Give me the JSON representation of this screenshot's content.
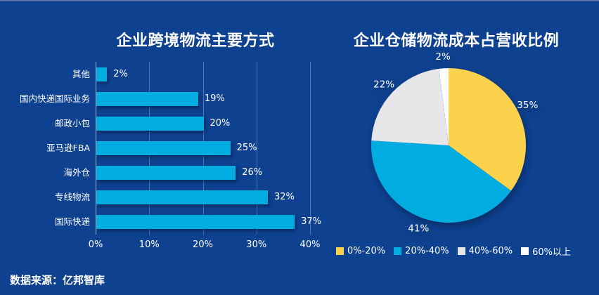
{
  "source": "数据来源：亿邦智库",
  "colors": {
    "background": "#0E418F",
    "top_strip": "#6F83A6",
    "text": "#FFFFFF",
    "gridline": "rgba(168,192,226,0.42)"
  },
  "chart_data": [
    {
      "type": "bar",
      "orientation": "horizontal",
      "title": "企业跨境物流主要方式",
      "categories": [
        "其他",
        "国内快递国际业务",
        "邮政小包",
        "亚马逊FBA",
        "海外仓",
        "专线物流",
        "国际快递"
      ],
      "values": [
        2,
        19,
        20,
        25,
        26,
        32,
        37
      ],
      "value_labels": [
        "2%",
        "19%",
        "20%",
        "25%",
        "26%",
        "32%",
        "37%"
      ],
      "xlim": [
        0,
        40
      ],
      "x_ticks": [
        {
          "value": 0,
          "label": "0%"
        },
        {
          "value": 10,
          "label": "10%"
        },
        {
          "value": 20,
          "label": "20%"
        },
        {
          "value": 30,
          "label": "30%"
        },
        {
          "value": 40,
          "label": "40%"
        }
      ],
      "bar_color": "#00ACE0",
      "grid": true,
      "legend": false
    },
    {
      "type": "pie",
      "title": "企业仓储物流成本占营收比例",
      "slices": [
        {
          "label": "0%-20%",
          "value": 35,
          "display": "35%",
          "color": "#FCD14B"
        },
        {
          "label": "20%-40%",
          "value": 41,
          "display": "41%",
          "color": "#00ACE0"
        },
        {
          "label": "40%-60%",
          "value": 22,
          "display": "22%",
          "color": "#E7E7E9"
        },
        {
          "label": "60%以上",
          "value": 2,
          "display": "2%",
          "color": "#FFFFFF"
        }
      ],
      "start_angle_deg": 0,
      "direction": "clockwise",
      "legend_position": "bottom",
      "dashed_boundary_after_index": 2
    }
  ]
}
